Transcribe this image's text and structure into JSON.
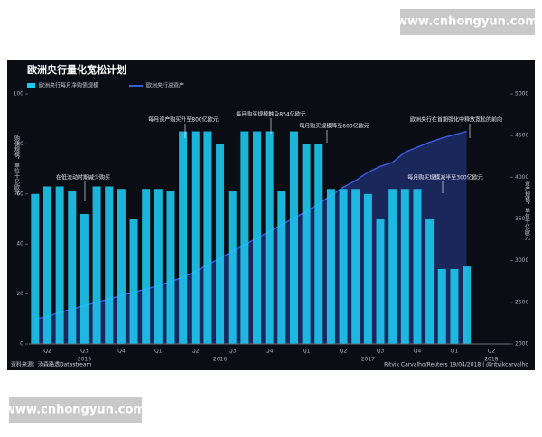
{
  "watermarks": [
    "www.cnhongyun.com",
    "www.cnhongyun.com"
  ],
  "chart_data": {
    "type": "bar",
    "title": "欧洲央行量化宽松计划",
    "y_label": "购债规模，单位十亿欧元",
    "y2_label": "资产规模，单位十亿欧元",
    "source": "资料来源：汤森路透Datastream",
    "credit": "Ritvik Carvalho/Reuters 19/04/2018 | @ritvikcarvalho",
    "categories": [
      null,
      "Q2",
      null,
      null,
      "Q3",
      null,
      null,
      "Q4",
      null,
      null,
      "Q1",
      null,
      null,
      "Q2",
      null,
      null,
      "Q3",
      null,
      null,
      "Q4",
      null,
      null,
      "Q1",
      null,
      null,
      "Q2",
      null,
      null,
      "Q3",
      null,
      null,
      "Q4",
      null,
      null,
      "Q1",
      null,
      null,
      "Q2"
    ],
    "year_labels": [
      null,
      null,
      null,
      null,
      "2015",
      null,
      null,
      null,
      null,
      null,
      null,
      null,
      null,
      null,
      null,
      "2016",
      null,
      null,
      null,
      null,
      null,
      null,
      null,
      null,
      null,
      null,
      null,
      "2017",
      null,
      null,
      null,
      null,
      null,
      null,
      null,
      null,
      null,
      "2018"
    ],
    "series": [
      {
        "name": "欧洲央行每月净购债规模",
        "color": "#1ec8f0",
        "axis": "y",
        "values": [
          60,
          63,
          63,
          61,
          52,
          63,
          63,
          62,
          50,
          62,
          62,
          61,
          85,
          85,
          85,
          80,
          61,
          85,
          85,
          85,
          61,
          85,
          80,
          80,
          62,
          62,
          62,
          60,
          50,
          62,
          62,
          62,
          50,
          30,
          30,
          31,
          null,
          null
        ]
      },
      {
        "name": "欧洲央行总资产",
        "color": "#3a5ae0",
        "axis": "y2",
        "values": [
          2300,
          2330,
          2380,
          2420,
          2460,
          2500,
          2540,
          2580,
          2620,
          2660,
          2700,
          2750,
          2800,
          2870,
          2950,
          3030,
          3110,
          3190,
          3270,
          3350,
          3430,
          3510,
          3590,
          3680,
          3780,
          3880,
          3960,
          4060,
          4130,
          4180,
          4300,
          4360,
          4420,
          4470,
          4510,
          4550,
          null,
          null
        ]
      }
    ],
    "ylim": [
      0,
      100
    ],
    "yticks": [
      0,
      20,
      40,
      60,
      80,
      100
    ],
    "y2lim": [
      2000,
      5000
    ],
    "y2ticks": [
      2000,
      2500,
      3000,
      3500,
      4000,
      4500,
      5000
    ],
    "annotations": [
      "在低流动时期减少购买",
      "每月资产购买升至800亿欧元",
      "每月购买规模触及854亿欧元",
      "每月购买规模降至600亿欧元",
      "欧洲央行在首期强化中释放宽松的前向",
      "每月购买规模减半至300亿欧元"
    ]
  }
}
